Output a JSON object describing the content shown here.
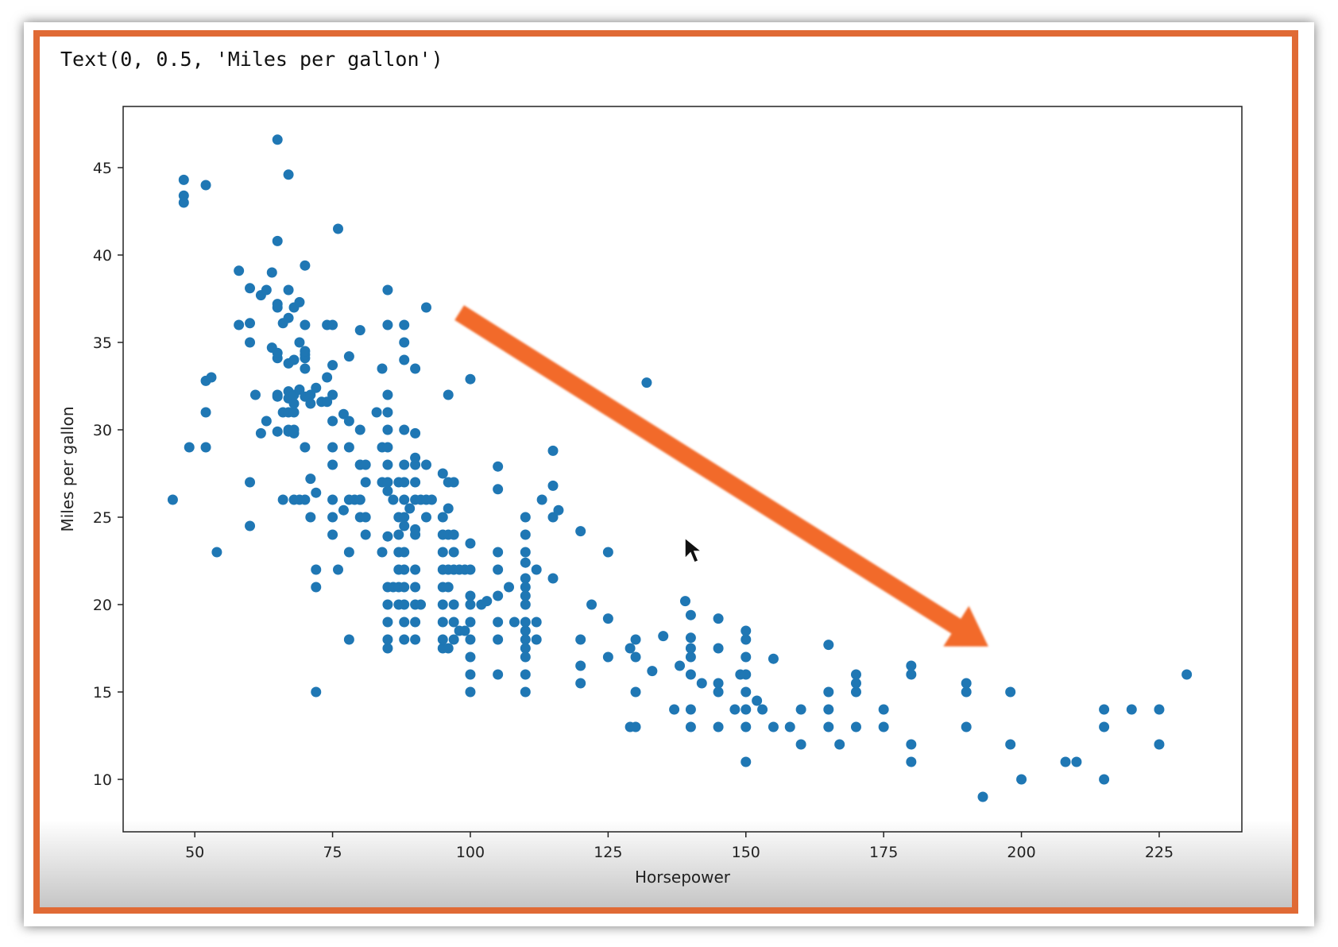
{
  "output_text": "Text(0, 0.5, 'Miles per gallon')",
  "colors": {
    "frame_border": "#e06a35",
    "point": "#1f77b4",
    "arrow": "#f26b2a"
  },
  "chart_data": {
    "type": "scatter",
    "title": "",
    "xlabel": "Horsepower",
    "ylabel": "Miles per gallon",
    "xlim": [
      37,
      240
    ],
    "ylim": [
      7,
      48.5
    ],
    "xticks": [
      50,
      75,
      100,
      125,
      150,
      175,
      200,
      225
    ],
    "yticks": [
      10,
      15,
      20,
      25,
      30,
      35,
      40,
      45
    ],
    "grid": false,
    "annotation": {
      "type": "arrow",
      "from": [
        98,
        36.7
      ],
      "to": [
        194,
        17.6
      ]
    },
    "points": [
      [
        46,
        26
      ],
      [
        48,
        43
      ],
      [
        48,
        43.4
      ],
      [
        48,
        44.3
      ],
      [
        49,
        29
      ],
      [
        52,
        29
      ],
      [
        52,
        31
      ],
      [
        52,
        32.8
      ],
      [
        53,
        33
      ],
      [
        52,
        44
      ],
      [
        54,
        23
      ],
      [
        58,
        36
      ],
      [
        58,
        39.1
      ],
      [
        60,
        24.5
      ],
      [
        60,
        27
      ],
      [
        60,
        35
      ],
      [
        60,
        36.1
      ],
      [
        60,
        38.1
      ],
      [
        61,
        32
      ],
      [
        62,
        37.7
      ],
      [
        62,
        29.8
      ],
      [
        63,
        38
      ],
      [
        63,
        30.5
      ],
      [
        64,
        34.7
      ],
      [
        64,
        39
      ],
      [
        65,
        31.9
      ],
      [
        65,
        29.9
      ],
      [
        65,
        32
      ],
      [
        65,
        34.1
      ],
      [
        65,
        34.4
      ],
      [
        65,
        37
      ],
      [
        65,
        37.2
      ],
      [
        65,
        40.8
      ],
      [
        65,
        46.6
      ],
      [
        66,
        31
      ],
      [
        66,
        36.1
      ],
      [
        66,
        26
      ],
      [
        67,
        38
      ],
      [
        67,
        44.6
      ],
      [
        67,
        29.9
      ],
      [
        67,
        30
      ],
      [
        67,
        31
      ],
      [
        67,
        31.8
      ],
      [
        67,
        32.2
      ],
      [
        67,
        33.8
      ],
      [
        67,
        36.4
      ],
      [
        68,
        29.8
      ],
      [
        68,
        26
      ],
      [
        68,
        30
      ],
      [
        68,
        31
      ],
      [
        68,
        31.5
      ],
      [
        68,
        32
      ],
      [
        68,
        34
      ],
      [
        68,
        37
      ],
      [
        69,
        35
      ],
      [
        69,
        26
      ],
      [
        69,
        32.3
      ],
      [
        69,
        37.3
      ],
      [
        70,
        26
      ],
      [
        70,
        29
      ],
      [
        70,
        31.9
      ],
      [
        70,
        33.5
      ],
      [
        70,
        34.1
      ],
      [
        70,
        34.3
      ],
      [
        70,
        34.5
      ],
      [
        70,
        36
      ],
      [
        70,
        39.4
      ],
      [
        71,
        25
      ],
      [
        71,
        27.2
      ],
      [
        71,
        32
      ],
      [
        71,
        31.5
      ],
      [
        72,
        15
      ],
      [
        72,
        21
      ],
      [
        72,
        22
      ],
      [
        72,
        26.4
      ],
      [
        72,
        32.4
      ],
      [
        73,
        31.6
      ],
      [
        74,
        31.6
      ],
      [
        74,
        33
      ],
      [
        74,
        36
      ],
      [
        75,
        24
      ],
      [
        75,
        25
      ],
      [
        75,
        26
      ],
      [
        75,
        28
      ],
      [
        75,
        29
      ],
      [
        75,
        30.5
      ],
      [
        75,
        32
      ],
      [
        75,
        33.7
      ],
      [
        75,
        36
      ],
      [
        76,
        41.5
      ],
      [
        76,
        22
      ],
      [
        77,
        25.4
      ],
      [
        77,
        30.9
      ],
      [
        78,
        18
      ],
      [
        78,
        23
      ],
      [
        78,
        26
      ],
      [
        78,
        29
      ],
      [
        78,
        30.5
      ],
      [
        78,
        34.2
      ],
      [
        79,
        26
      ],
      [
        80,
        26
      ],
      [
        80,
        28
      ],
      [
        80,
        30
      ],
      [
        80,
        35.7
      ],
      [
        80,
        25
      ],
      [
        80,
        28
      ],
      [
        80,
        26
      ],
      [
        81,
        25
      ],
      [
        81,
        27
      ],
      [
        81,
        28
      ],
      [
        81,
        24
      ],
      [
        83,
        31
      ],
      [
        84,
        23
      ],
      [
        84,
        27
      ],
      [
        84,
        29
      ],
      [
        84,
        33.5
      ],
      [
        85,
        27
      ],
      [
        85,
        28
      ],
      [
        85,
        29
      ],
      [
        85,
        32
      ],
      [
        85,
        36
      ],
      [
        85,
        38
      ],
      [
        85,
        17.5
      ],
      [
        85,
        18
      ],
      [
        85,
        19
      ],
      [
        85,
        20
      ],
      [
        85,
        21
      ],
      [
        85,
        23.9
      ],
      [
        85,
        26.5
      ],
      [
        85,
        30
      ],
      [
        85,
        31
      ],
      [
        86,
        21
      ],
      [
        86,
        26
      ],
      [
        87,
        21
      ],
      [
        87,
        25
      ],
      [
        87,
        27
      ],
      [
        87,
        20
      ],
      [
        87,
        22
      ],
      [
        87,
        23
      ],
      [
        87,
        24
      ],
      [
        88,
        19
      ],
      [
        88,
        20
      ],
      [
        88,
        21
      ],
      [
        88,
        22
      ],
      [
        88,
        23
      ],
      [
        88,
        24.5
      ],
      [
        88,
        25
      ],
      [
        88,
        26
      ],
      [
        88,
        27
      ],
      [
        88,
        28
      ],
      [
        88,
        30
      ],
      [
        88,
        34
      ],
      [
        88,
        35
      ],
      [
        88,
        36
      ],
      [
        88,
        18
      ],
      [
        89,
        25.5
      ],
      [
        90,
        18
      ],
      [
        90,
        19
      ],
      [
        90,
        20
      ],
      [
        90,
        21
      ],
      [
        90,
        22
      ],
      [
        90,
        24
      ],
      [
        90,
        24.3
      ],
      [
        90,
        26
      ],
      [
        90,
        27
      ],
      [
        90,
        28
      ],
      [
        90,
        28.4
      ],
      [
        90,
        29.8
      ],
      [
        90,
        33.5
      ],
      [
        91,
        20
      ],
      [
        91,
        26
      ],
      [
        92,
        25
      ],
      [
        92,
        26
      ],
      [
        92,
        28
      ],
      [
        92,
        37
      ],
      [
        93,
        26
      ],
      [
        95,
        17.5
      ],
      [
        95,
        18
      ],
      [
        95,
        19
      ],
      [
        95,
        20
      ],
      [
        95,
        21
      ],
      [
        95,
        22
      ],
      [
        95,
        23
      ],
      [
        95,
        24
      ],
      [
        95,
        25
      ],
      [
        95,
        27.5
      ],
      [
        96,
        17.5
      ],
      [
        96,
        21
      ],
      [
        96,
        22
      ],
      [
        96,
        24
      ],
      [
        96,
        25.5
      ],
      [
        96,
        27
      ],
      [
        96,
        32
      ],
      [
        97,
        18
      ],
      [
        97,
        19
      ],
      [
        97,
        20
      ],
      [
        97,
        22
      ],
      [
        97,
        23
      ],
      [
        97,
        24
      ],
      [
        97,
        27
      ],
      [
        98,
        18.5
      ],
      [
        98,
        22
      ],
      [
        99,
        18.5
      ],
      [
        99,
        22
      ],
      [
        100,
        15
      ],
      [
        100,
        16
      ],
      [
        100,
        17
      ],
      [
        100,
        18
      ],
      [
        100,
        19
      ],
      [
        100,
        20
      ],
      [
        100,
        20.5
      ],
      [
        100,
        22
      ],
      [
        100,
        23.5
      ],
      [
        100,
        32.9
      ],
      [
        102,
        20
      ],
      [
        103,
        20.2
      ],
      [
        105,
        16
      ],
      [
        105,
        18
      ],
      [
        105,
        19
      ],
      [
        105,
        20.5
      ],
      [
        105,
        22
      ],
      [
        105,
        23
      ],
      [
        105,
        26.6
      ],
      [
        105,
        27.9
      ],
      [
        107,
        21
      ],
      [
        108,
        19
      ],
      [
        110,
        15
      ],
      [
        110,
        16
      ],
      [
        110,
        17
      ],
      [
        110,
        17.5
      ],
      [
        110,
        18
      ],
      [
        110,
        18.5
      ],
      [
        110,
        19
      ],
      [
        110,
        20
      ],
      [
        110,
        20.5
      ],
      [
        110,
        21
      ],
      [
        110,
        21.5
      ],
      [
        110,
        22.4
      ],
      [
        110,
        23
      ],
      [
        110,
        24
      ],
      [
        110,
        25
      ],
      [
        112,
        18
      ],
      [
        112,
        19
      ],
      [
        112,
        22
      ],
      [
        113,
        26
      ],
      [
        115,
        21.5
      ],
      [
        115,
        25
      ],
      [
        115,
        26.8
      ],
      [
        115,
        28.8
      ],
      [
        116,
        25.4
      ],
      [
        120,
        15.5
      ],
      [
        120,
        16.5
      ],
      [
        120,
        18
      ],
      [
        120,
        24.2
      ],
      [
        122,
        20
      ],
      [
        125,
        17
      ],
      [
        125,
        19.2
      ],
      [
        125,
        23
      ],
      [
        129,
        17.5
      ],
      [
        129,
        13
      ],
      [
        130,
        13
      ],
      [
        130,
        15
      ],
      [
        130,
        17
      ],
      [
        130,
        18
      ],
      [
        132,
        32.7
      ],
      [
        133,
        16.2
      ],
      [
        135,
        18.2
      ],
      [
        137,
        14
      ],
      [
        138,
        16.5
      ],
      [
        139,
        20.2
      ],
      [
        140,
        13
      ],
      [
        140,
        14
      ],
      [
        140,
        16
      ],
      [
        140,
        17
      ],
      [
        140,
        17.5
      ],
      [
        140,
        18.1
      ],
      [
        140,
        19.4
      ],
      [
        142,
        15.5
      ],
      [
        145,
        13
      ],
      [
        145,
        15
      ],
      [
        145,
        15.5
      ],
      [
        145,
        17.5
      ],
      [
        145,
        19.2
      ],
      [
        148,
        14
      ],
      [
        149,
        16
      ],
      [
        150,
        11
      ],
      [
        150,
        13
      ],
      [
        150,
        14
      ],
      [
        150,
        15
      ],
      [
        150,
        16
      ],
      [
        150,
        17
      ],
      [
        150,
        18
      ],
      [
        150,
        18.5
      ],
      [
        152,
        14.5
      ],
      [
        153,
        14
      ],
      [
        155,
        13
      ],
      [
        155,
        16.9
      ],
      [
        158,
        13
      ],
      [
        160,
        12
      ],
      [
        160,
        14
      ],
      [
        165,
        13
      ],
      [
        165,
        14
      ],
      [
        165,
        15
      ],
      [
        165,
        17.7
      ],
      [
        167,
        12
      ],
      [
        170,
        13
      ],
      [
        170,
        15
      ],
      [
        170,
        15.5
      ],
      [
        170,
        16
      ],
      [
        175,
        13
      ],
      [
        175,
        14
      ],
      [
        180,
        11
      ],
      [
        180,
        12
      ],
      [
        180,
        16
      ],
      [
        180,
        16.5
      ],
      [
        190,
        13
      ],
      [
        190,
        15
      ],
      [
        190,
        15.5
      ],
      [
        193,
        9
      ],
      [
        198,
        12
      ],
      [
        198,
        15
      ],
      [
        200,
        10
      ],
      [
        208,
        11
      ],
      [
        210,
        11
      ],
      [
        215,
        10
      ],
      [
        215,
        13
      ],
      [
        215,
        14
      ],
      [
        220,
        14
      ],
      [
        225,
        12
      ],
      [
        225,
        14
      ],
      [
        230,
        16
      ]
    ]
  }
}
